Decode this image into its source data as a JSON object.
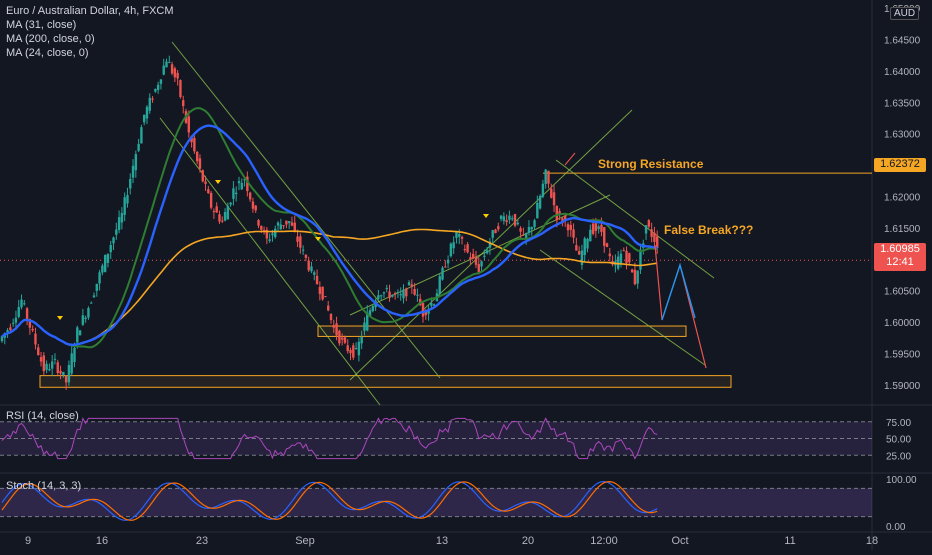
{
  "header": {
    "symbol_title": "Euro / Australian Dollar, 4h, FXCM",
    "indicators": [
      "MA (31, close)",
      "MA (200, close, 0)",
      "MA (24, close, 0)"
    ]
  },
  "price_axis": {
    "currency": "AUD",
    "last_price": "1.60985",
    "countdown": "12:41",
    "resistance_price": "1.62372"
  },
  "rsi_pane": {
    "label": "RSI (14, close)",
    "ticks": [
      "75.00",
      "50.00",
      "25.00"
    ]
  },
  "stoch_pane": {
    "label": "Stoch (14, 3, 3)",
    "ticks": [
      "100.00",
      "0.00"
    ]
  },
  "annotations": {
    "strong_resistance": "Strong Resistance",
    "false_break": "False Break???"
  },
  "colors": {
    "background": "#131722",
    "up": "#26a69a",
    "down": "#ef5350",
    "ma31": "#2962ff",
    "ma200": "#f5a623",
    "ma24": "#2e7d32",
    "zone": "#f5a623",
    "channel": "#8bc34a",
    "resistance": "#f5a623",
    "projection": "#ef5350",
    "projection_up": "#2196f3"
  },
  "chart_data": {
    "type": "candlestick",
    "title": "Euro / Australian Dollar, 4h, FXCM",
    "x_ticks": [
      "9",
      "16",
      "23",
      "Sep",
      "13",
      "20",
      "12:00",
      "Oct",
      "11",
      "18"
    ],
    "y_ticks": [
      1.59,
      1.595,
      1.6,
      1.605,
      1.61,
      1.615,
      1.62,
      1.625,
      1.63,
      1.635,
      1.64,
      1.645,
      1.65
    ],
    "ylim": [
      1.5868,
      1.6513
    ],
    "last_price": 1.60985,
    "resistance_level": 1.62372,
    "support_zones": [
      [
        1.5982,
        1.5989
      ],
      [
        1.5901,
        1.591
      ]
    ],
    "price_path": [
      1.597,
      1.5995,
      1.6035,
      1.598,
      1.5925,
      1.5935,
      1.5905,
      1.5985,
      1.6025,
      1.6075,
      1.6125,
      1.617,
      1.625,
      1.633,
      1.637,
      1.642,
      1.638,
      1.63,
      1.624,
      1.6185,
      1.616,
      1.621,
      1.623,
      1.617,
      1.613,
      1.6155,
      1.616,
      1.612,
      1.608,
      1.6045,
      1.599,
      1.596,
      1.595,
      1.601,
      1.605,
      1.6045,
      1.604,
      1.606,
      1.6015,
      1.6035,
      1.6095,
      1.614,
      1.611,
      1.6085,
      1.613,
      1.6165,
      1.617,
      1.613,
      1.6165,
      1.6235,
      1.617,
      1.6155,
      1.61,
      1.615,
      1.6145,
      1.6085,
      1.6115,
      1.6065,
      1.6155,
      1.6125
    ],
    "rsi": {
      "ylim": [
        0,
        100
      ],
      "levels": [
        75,
        50,
        25
      ]
    },
    "stoch": {
      "ylim": [
        0,
        100
      ],
      "levels": [
        80,
        20
      ]
    }
  }
}
